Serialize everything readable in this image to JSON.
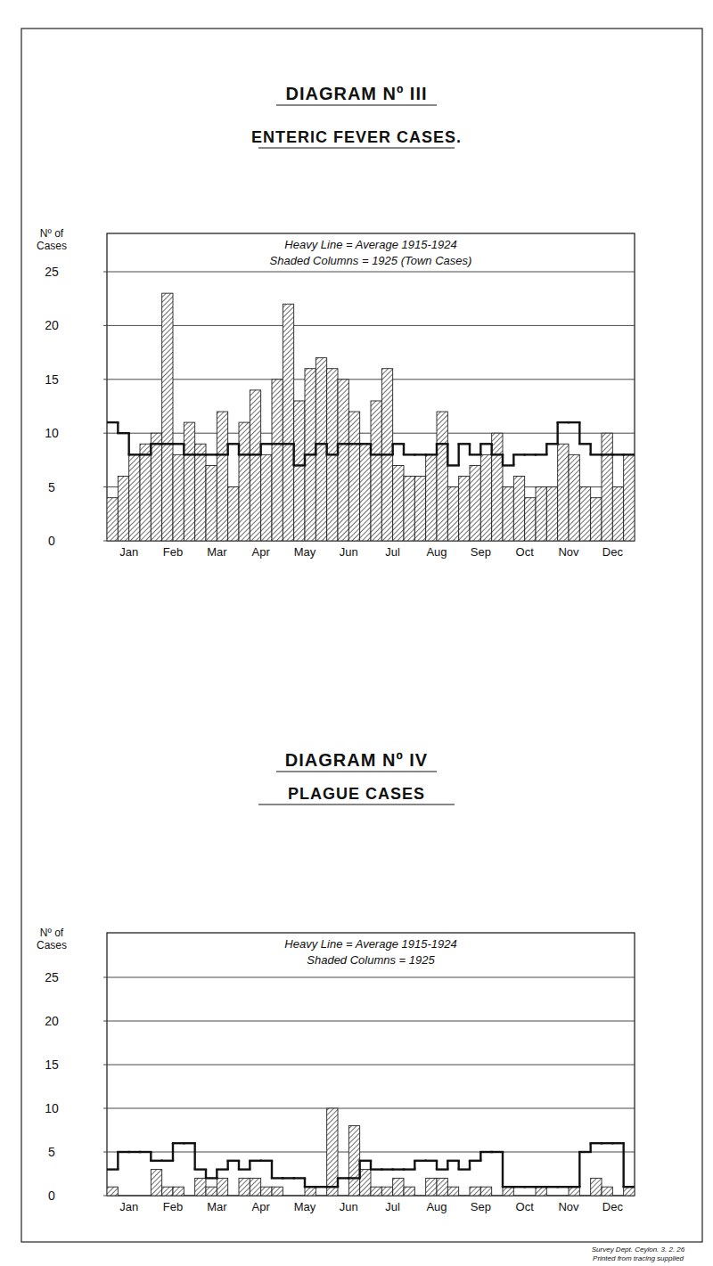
{
  "chart_data": [
    {
      "type": "bar",
      "subtitle": "DIAGRAM Nº III",
      "title": "ENTERIC FEVER CASES.",
      "y_label": "Nº of Cases",
      "categories": [
        "Jan",
        null,
        null,
        null,
        "Feb",
        null,
        null,
        null,
        "Mar",
        null,
        null,
        null,
        "Apr",
        null,
        null,
        null,
        "May",
        null,
        null,
        null,
        "Jun",
        null,
        null,
        null,
        "Jul",
        null,
        null,
        null,
        "Aug",
        null,
        null,
        null,
        "Sep",
        null,
        null,
        null,
        "Oct",
        null,
        null,
        null,
        "Nov",
        null,
        null,
        null,
        "Dec",
        null,
        null,
        null
      ],
      "series": [
        {
          "name": "Heavy Line = Average 1915-1924",
          "type": "line",
          "line_style": "steps",
          "color": "#111111",
          "values": [
            11,
            10,
            8,
            8,
            9,
            9,
            9,
            8,
            8,
            8,
            8,
            9,
            8,
            8,
            9,
            9,
            9,
            7,
            8,
            9,
            8,
            9,
            9,
            9,
            8,
            8,
            9,
            8,
            8,
            8,
            9,
            7,
            9,
            8,
            9,
            8,
            7,
            8,
            8,
            8,
            9,
            11,
            11,
            9,
            8,
            8,
            8,
            8
          ]
        },
        {
          "name": "Shaded Columns = 1925 (Town Cases)",
          "type": "bar",
          "color": "#222222",
          "values": [
            4,
            6,
            8,
            9,
            10,
            23,
            8,
            11,
            9,
            7,
            12,
            5,
            11,
            14,
            8,
            15,
            22,
            13,
            16,
            17,
            16,
            15,
            12,
            9,
            13,
            16,
            7,
            6,
            6,
            8,
            12,
            5,
            6,
            7,
            8,
            10,
            5,
            6,
            4,
            5,
            5,
            9,
            8,
            5,
            4,
            10,
            5,
            8
          ]
        }
      ],
      "ylim": [
        0,
        25
      ],
      "yticks": [
        0,
        5,
        10,
        15,
        20,
        25
      ],
      "grid": true,
      "legend": "top"
    },
    {
      "type": "bar",
      "subtitle": "DIAGRAM Nº IV",
      "title": "PLAGUE CASES",
      "y_label": "Nº of Cases",
      "categories": [
        "Jan",
        null,
        null,
        null,
        "Feb",
        null,
        null,
        null,
        "Mar",
        null,
        null,
        null,
        "Apr",
        null,
        null,
        null,
        "May",
        null,
        null,
        null,
        "Jun",
        null,
        null,
        null,
        "Jul",
        null,
        null,
        null,
        "Aug",
        null,
        null,
        null,
        "Sep",
        null,
        null,
        null,
        "Oct",
        null,
        null,
        null,
        "Nov",
        null,
        null,
        null,
        "Dec",
        null,
        null,
        null
      ],
      "series": [
        {
          "name": "Heavy Line = Average 1915-1924",
          "type": "line",
          "line_style": "steps",
          "color": "#111111",
          "values": [
            3,
            5,
            5,
            5,
            4,
            4,
            6,
            6,
            3,
            2,
            3,
            4,
            3,
            4,
            4,
            2,
            2,
            2,
            1,
            1,
            1,
            2,
            2,
            4,
            3,
            3,
            3,
            3,
            4,
            4,
            3,
            4,
            3,
            4,
            5,
            5,
            1,
            1,
            1,
            1,
            1,
            1,
            1,
            5,
            6,
            6,
            6,
            1
          ]
        },
        {
          "name": "Shaded Columns = 1925",
          "type": "bar",
          "color": "#222222",
          "values": [
            1,
            0,
            0,
            0,
            3,
            1,
            1,
            0,
            2,
            1,
            2,
            0,
            2,
            2,
            1,
            1,
            0,
            0,
            1,
            0,
            10,
            0,
            8,
            3,
            1,
            1,
            2,
            1,
            0,
            2,
            2,
            1,
            0,
            1,
            1,
            0,
            1,
            0,
            0,
            1,
            0,
            0,
            1,
            0,
            2,
            1,
            0,
            1
          ]
        }
      ],
      "ylim": [
        0,
        25
      ],
      "yticks": [
        0,
        5,
        10,
        15,
        20,
        25
      ],
      "grid": true,
      "legend": "top"
    }
  ],
  "footer": [
    "Survey Dept. Ceylon. 3. 2. 26",
    "Printed from tracing supplied"
  ]
}
